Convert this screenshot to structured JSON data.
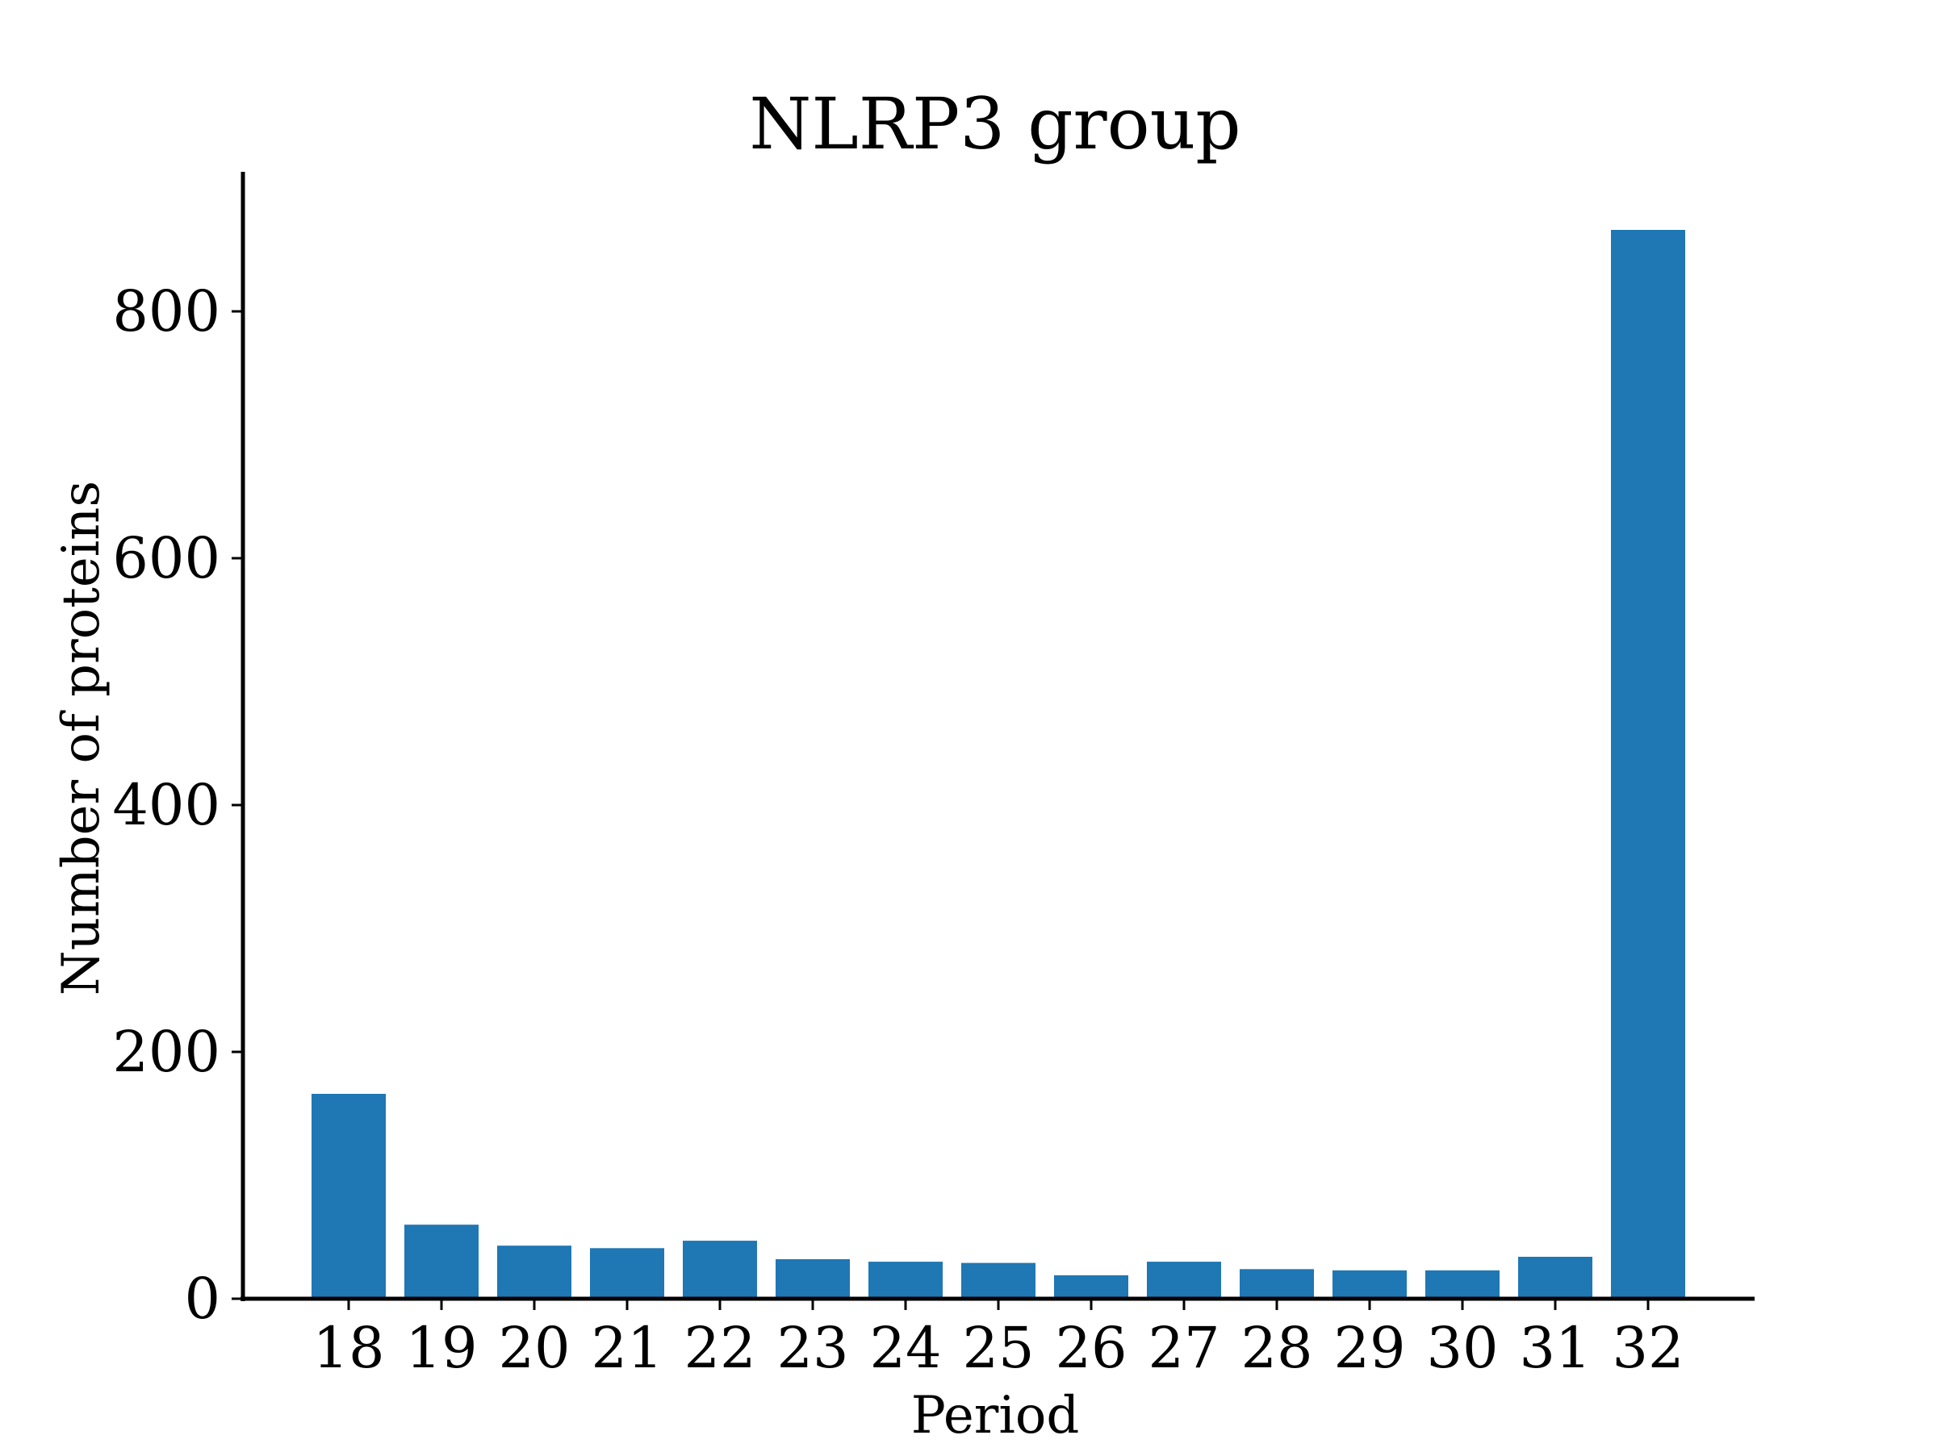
{
  "chart_data": {
    "type": "bar",
    "title": "NLRP3 group",
    "xlabel": "Period",
    "ylabel": "Number of proteins",
    "categories": [
      "18",
      "19",
      "20",
      "21",
      "22",
      "23",
      "24",
      "25",
      "26",
      "27",
      "28",
      "29",
      "30",
      "31",
      "32"
    ],
    "values": [
      166,
      60,
      43,
      41,
      47,
      32,
      30,
      29,
      19,
      30,
      24,
      23,
      23,
      34,
      866
    ],
    "ylim": [
      0,
      910
    ],
    "yticks": [
      0,
      200,
      400,
      600,
      800
    ],
    "bar_color": "#1f77b4",
    "grid": false,
    "legend": "none"
  }
}
